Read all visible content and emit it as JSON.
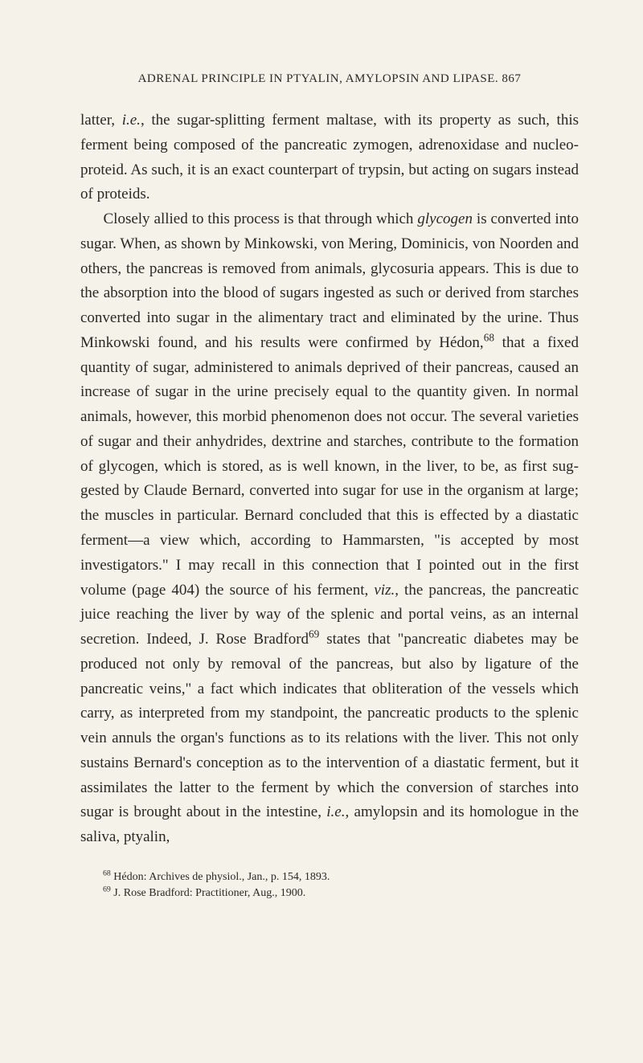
{
  "header": {
    "running_title": "ADRENAL PRINCIPLE IN PTYALIN, AMYLOPSIN AND LIPASE.",
    "page_number": "867"
  },
  "paragraphs": {
    "p1_part1": "latter, ",
    "p1_ie": "i.e.",
    "p1_part2": ", the sugar-splitting ferment maltase, with its prop­erty as such, this ferment being composed of the pancreatic zymogen, adrenoxidase and nucleo-proteid. As such, it is an exact counterpart of trypsin, but acting on sugars instead of proteids.",
    "p2_part1": "Closely allied to this process is that through which ",
    "p2_glycogen": "glycogen",
    "p2_part2": " is converted into sugar. When, as shown by Minkowski, von Mering, Dominicis, von Noorden and others, the pancreas is re­moved from animals, glycosuria appears. This is due to the absorption into the blood of sugars ingested as such or derived from starches converted into sugar in the alimentary tract and eliminated by the urine. Thus Minkowski found, and his re­sults were confirmed by Hédon,",
    "p2_sup68": "68",
    "p2_part3": " that a fixed quantity of sugar, administered to animals deprived of their pancreas, caused an in­crease of sugar in the urine precisely equal to the quantity given. In normal animals, however, this morbid phenomenon does not occur. The several varieties of sugar and their anhydrides, dextrine and starches, contribute to the formation of glycogen, which is stored, as is well known, in the liver, to be, as first sug­gested by Claude Bernard, converted into sugar for use in the organism at large; the muscles in particular. Bernard con­cluded that this is effected by a diastatic ferment—a view which, according to Hammarsten, \"is accepted by most investigators.\" I may recall in this connection that I pointed out in the first volume (page 404) the source of his ferment, ",
    "p2_viz": "viz.",
    "p2_part4": ", the pancreas, the pancreatic juice reaching the liver by way of the splenic and portal veins, as an internal secretion. Indeed, J. Rose Bradford",
    "p2_sup69": "69",
    "p2_part5": " states that \"pancreatic diabetes may be produced not only by removal of the pancreas, but also by ligature of the pancreatic veins,\" a fact which indicates that obliteration of the vessels which carry, as interpreted from my standpoint, the pancreatic products to the splenic vein annuls the organ's func­tions as to its relations with the liver. This not only sustains Bernard's conception as to the intervention of a diastatic fer­ment, but it assimilates the latter to the ferment by which the conversion of starches into sugar is brought about in the in­testine, ",
    "p2_ie": "i.e.",
    "p2_part6": ", amylopsin and its homologue in the saliva, ptyalin,"
  },
  "footnotes": {
    "fn68_sup": "68",
    "fn68_text": " Hédon: Archives de physiol., Jan., p. 154, 1893.",
    "fn69_sup": "69",
    "fn69_text": " J. Rose Bradford: Practitioner, Aug., 1900."
  }
}
